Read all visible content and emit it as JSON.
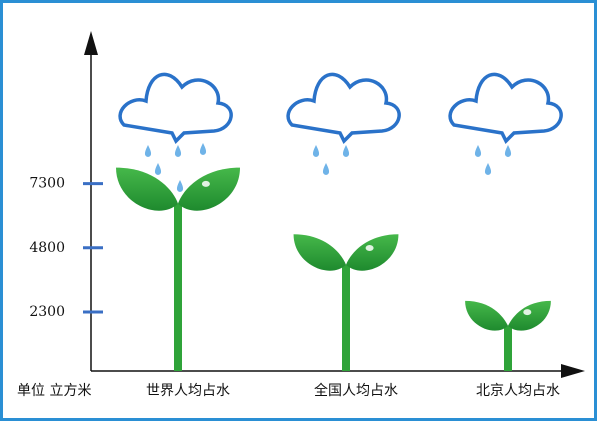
{
  "chart_data": {
    "type": "pictograph",
    "y_label": "单位 立方米",
    "categories": [
      "世界人均占水",
      "全国人均占水",
      "北京人均占水"
    ],
    "values": [
      7300,
      4800,
      2300
    ],
    "ylim": [
      0,
      9000
    ],
    "yticks": [
      7300,
      4800,
      2300
    ],
    "color": "#2fa339"
  }
}
